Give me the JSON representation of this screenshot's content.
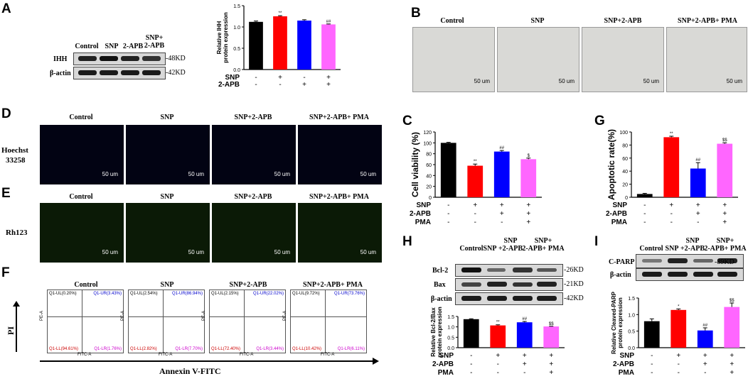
{
  "panels": {
    "A": "A",
    "B": "B",
    "C": "C",
    "D": "D",
    "E": "E",
    "F": "F",
    "G": "G",
    "H": "H",
    "I": "I"
  },
  "conditions": [
    "Control",
    "SNP",
    "SNP+2-APB",
    "SNP+2-APB+ PMA"
  ],
  "panel_a": {
    "cols": [
      "Control",
      "SNP",
      "2-APB",
      "SNP+\n2-APB"
    ],
    "rows": [
      "IHH",
      "β-actin"
    ],
    "sizes": [
      "-48KD",
      "-42KD"
    ]
  },
  "panel_d": {
    "stain_label_1": "Hoechst",
    "stain_label_2": "33258"
  },
  "panel_e": {
    "stain_label": "Rh123"
  },
  "scale_bar": "50 um",
  "panel_f": {
    "y_label": "PI",
    "x_label": "Annexin V-FITC",
    "axis_x": "FITC-A",
    "axis_y": "PE-A",
    "quadrants": [
      {
        "ul": "Q1-UL(0.20%)",
        "ur": "Q1-UR(3.43%)",
        "ll": "Q1-LL(94.61%)",
        "lr": "Q1-LR(1.76%)"
      },
      {
        "ul": "Q1-UL(2.54%)",
        "ur": "Q1-UR(86.94%)",
        "ll": "Q1-LL(2.82%)",
        "lr": "Q1-LR(7.70%)"
      },
      {
        "ul": "Q1-UL(2.15%)",
        "ur": "Q1-UR(22.02%)",
        "ll": "Q1-LL(72.40%)",
        "lr": "Q1-LR(3.44%)"
      },
      {
        "ul": "Q1-UL(9.72%)",
        "ur": "Q1-UR(73.76%)",
        "ll": "Q1-LL(10.42%)",
        "lr": "Q1-LR(6.11%)"
      }
    ]
  },
  "panel_h": {
    "cols": [
      "Control",
      "SNP",
      "SNP\n+2-APB",
      "SNP+\n2-APB+ PMA"
    ],
    "rows": [
      "Bcl-2",
      "Bax",
      "β-actin"
    ],
    "sizes": [
      "-26KD",
      "-21KD",
      "-42KD"
    ]
  },
  "panel_i": {
    "cols": [
      "Control",
      "SNP",
      "SNP\n+2-APB",
      "SNP+\n2-APB+ PMA"
    ],
    "rows": [
      "C-PARP",
      "β-actin"
    ],
    "sizes": [
      "-89KD"
    ]
  },
  "chart_data": [
    {
      "id": "A",
      "type": "bar",
      "ylabel": "Relative IHH\nprotein expression",
      "ylim": [
        0,
        1.5
      ],
      "yticks": [
        "0.0",
        "0.5",
        "1.0",
        "1.5"
      ],
      "values": [
        1.12,
        1.25,
        1.15,
        1.06
      ],
      "errors": [
        0.02,
        0.015,
        0.02,
        0.01
      ],
      "colors": [
        "#000000",
        "#ff0000",
        "#0000ff",
        "#ff66ff"
      ],
      "annotations": [
        "",
        "**",
        "",
        "##"
      ],
      "rows": [
        {
          "name": "SNP",
          "marks": [
            "-",
            "+",
            "-",
            "+"
          ]
        },
        {
          "name": "2-APB",
          "marks": [
            "-",
            "-",
            "+",
            "+"
          ]
        }
      ]
    },
    {
      "id": "C",
      "type": "bar",
      "ylabel": "Cell viability (%)",
      "ylim": [
        0,
        120
      ],
      "yticks": [
        "0",
        "20",
        "40",
        "60",
        "80",
        "100",
        "120"
      ],
      "values": [
        100,
        58,
        84,
        70
      ],
      "errors": [
        1,
        3,
        2,
        2
      ],
      "colors": [
        "#000000",
        "#ff0000",
        "#0000ff",
        "#ff66ff"
      ],
      "annotations": [
        "",
        "**",
        "##",
        "$"
      ],
      "rows": [
        {
          "name": "SNP",
          "marks": [
            "-",
            "+",
            "+",
            "+"
          ]
        },
        {
          "name": "2-APB",
          "marks": [
            "-",
            "-",
            "+",
            "+"
          ]
        },
        {
          "name": "PMA",
          "marks": [
            "-",
            "-",
            "-",
            "+"
          ]
        }
      ]
    },
    {
      "id": "G",
      "type": "bar",
      "ylabel": "Apoptotic rate(%)",
      "ylim": [
        0,
        100
      ],
      "yticks": [
        "0",
        "20",
        "40",
        "60",
        "80",
        "100"
      ],
      "values": [
        5,
        92,
        44,
        82
      ],
      "errors": [
        1,
        1.5,
        9,
        1.5
      ],
      "colors": [
        "#000000",
        "#ff0000",
        "#0000ff",
        "#ff66ff"
      ],
      "annotations": [
        "",
        "**",
        "##",
        "$$"
      ],
      "rows": [
        {
          "name": "SNP",
          "marks": [
            "-",
            "+",
            "+",
            "+"
          ]
        },
        {
          "name": "2-APB",
          "marks": [
            "-",
            "-",
            "+",
            "+"
          ]
        },
        {
          "name": "PMA",
          "marks": [
            "-",
            "-",
            "-",
            "+"
          ]
        }
      ]
    },
    {
      "id": "H",
      "type": "bar",
      "ylabel": "Relative Bcl-2/Bax\nprotein expression",
      "ylim": [
        0,
        1.5
      ],
      "yticks": [
        "0.0",
        "0.5",
        "1.0",
        "1.5"
      ],
      "values": [
        1.37,
        1.07,
        1.22,
        1.02
      ],
      "errors": [
        0.02,
        0.03,
        0.04,
        0.01
      ],
      "colors": [
        "#000000",
        "#ff0000",
        "#0000ff",
        "#ff66ff"
      ],
      "annotations": [
        "",
        "**",
        "##",
        "$$"
      ],
      "rows": [
        {
          "name": "SNP",
          "marks": [
            "-",
            "+",
            "+",
            "+"
          ]
        },
        {
          "name": "2-APB",
          "marks": [
            "-",
            "-",
            "+",
            "+"
          ]
        },
        {
          "name": "PMA",
          "marks": [
            "-",
            "-",
            "-",
            "+"
          ]
        }
      ]
    },
    {
      "id": "I",
      "type": "bar",
      "ylabel": "Relative Cleaved-PARP\nprotein expression",
      "ylim": [
        0,
        1.5
      ],
      "yticks": [
        "0.0",
        "0.5",
        "1.0",
        "1.5"
      ],
      "values": [
        0.8,
        1.14,
        0.52,
        1.23
      ],
      "errors": [
        0.07,
        0.03,
        0.08,
        0.12
      ],
      "colors": [
        "#000000",
        "#ff0000",
        "#0000ff",
        "#ff66ff"
      ],
      "annotations": [
        "",
        "*",
        "##",
        "$$"
      ],
      "rows": [
        {
          "name": "SNP",
          "marks": [
            "-",
            "+",
            "+",
            "+"
          ]
        },
        {
          "name": "2-APB",
          "marks": [
            "-",
            "-",
            "+",
            "+"
          ]
        },
        {
          "name": "PMA",
          "marks": [
            "-",
            "-",
            "-",
            "+"
          ]
        }
      ]
    }
  ]
}
